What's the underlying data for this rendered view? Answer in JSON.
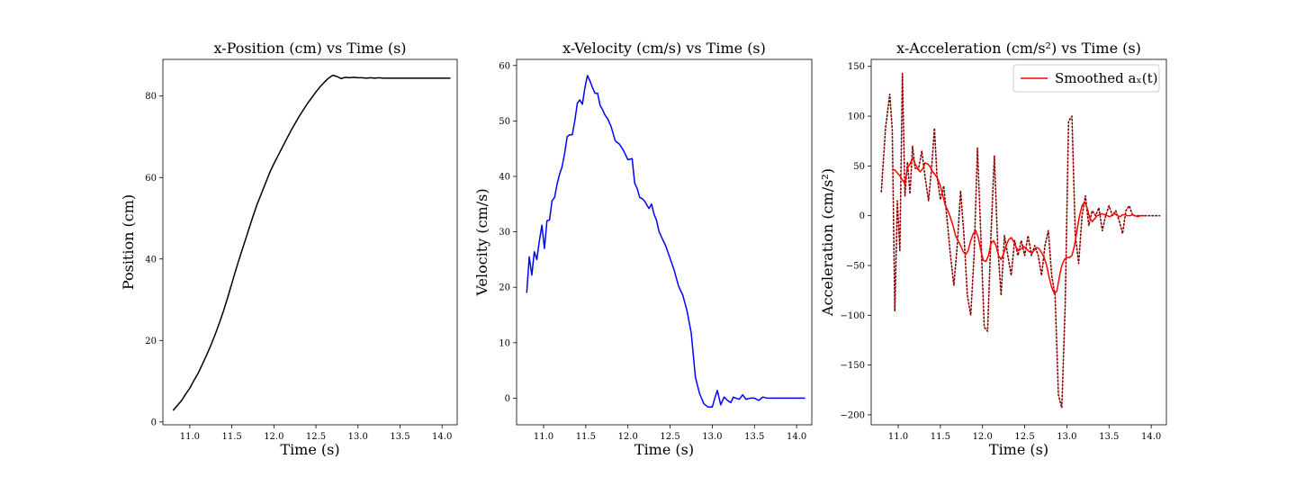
{
  "chart_data": [
    {
      "type": "line",
      "title": "x-Position (cm) vs Time (s)",
      "xlabel": "Time (s)",
      "ylabel": "Position (cm)",
      "xlim": [
        10.68,
        14.18
      ],
      "ylim": [
        -0.7,
        89.0
      ],
      "xticks": [
        11.0,
        11.5,
        12.0,
        12.5,
        13.0,
        13.5,
        14.0
      ],
      "xtick_labels": [
        "11.0",
        "11.5",
        "12.0",
        "12.5",
        "13.0",
        "13.5",
        "14.0"
      ],
      "yticks": [
        0,
        20,
        40,
        60,
        80
      ],
      "ytick_labels": [
        "0",
        "20",
        "40",
        "60",
        "80"
      ],
      "grid": false,
      "series": [
        {
          "color": "#000000",
          "style": "solid",
          "x": [
            10.8,
            10.85,
            10.9,
            10.95,
            11.0,
            11.05,
            11.1,
            11.15,
            11.2,
            11.25,
            11.3,
            11.35,
            11.4,
            11.45,
            11.5,
            11.55,
            11.6,
            11.65,
            11.7,
            11.75,
            11.8,
            11.85,
            11.9,
            11.95,
            12.0,
            12.05,
            12.1,
            12.15,
            12.2,
            12.25,
            12.3,
            12.35,
            12.4,
            12.45,
            12.5,
            12.55,
            12.6,
            12.65,
            12.7,
            12.75,
            12.8,
            12.85,
            12.9,
            12.95,
            13.0,
            13.05,
            13.1,
            13.15,
            13.2,
            13.25,
            13.3,
            13.35,
            13.4,
            13.45,
            13.5,
            13.55,
            13.6,
            13.65,
            13.7,
            13.75,
            13.8,
            13.85,
            13.9,
            13.95,
            14.0,
            14.05,
            14.1
          ],
          "y": [
            2.8,
            4.0,
            5.2,
            6.8,
            8.3,
            10.2,
            12.0,
            14.2,
            16.4,
            18.8,
            21.4,
            24.2,
            27.2,
            30.5,
            34.0,
            37.5,
            40.8,
            44.0,
            47.2,
            50.4,
            53.4,
            56.0,
            58.6,
            61.2,
            63.4,
            65.4,
            67.4,
            69.4,
            71.4,
            73.2,
            75.0,
            76.6,
            78.2,
            79.6,
            81.0,
            82.3,
            83.4,
            84.4,
            85.1,
            84.8,
            84.3,
            84.6,
            84.5,
            84.6,
            84.5,
            84.5,
            84.4,
            84.5,
            84.4,
            84.5,
            84.4,
            84.4,
            84.4,
            84.4,
            84.4,
            84.4,
            84.4,
            84.4,
            84.4,
            84.4,
            84.4,
            84.4,
            84.4,
            84.4,
            84.4,
            84.4,
            84.4
          ]
        }
      ]
    },
    {
      "type": "line",
      "title": "x-Velocity (cm/s) vs Time (s)",
      "xlabel": "Time (s)",
      "ylabel": "Velocity (cm/s)",
      "xlim": [
        10.68,
        14.18
      ],
      "ylim": [
        -4.8,
        61.1
      ],
      "xticks": [
        11.0,
        11.5,
        12.0,
        12.5,
        13.0,
        13.5,
        14.0
      ],
      "xtick_labels": [
        "11.0",
        "11.5",
        "12.0",
        "12.5",
        "13.0",
        "13.5",
        "14.0"
      ],
      "yticks": [
        0,
        10,
        20,
        30,
        40,
        50,
        60
      ],
      "ytick_labels": [
        "0",
        "10",
        "20",
        "30",
        "40",
        "50",
        "60"
      ],
      "grid": false,
      "series": [
        {
          "color": "#0000ff",
          "style": "solid",
          "x": [
            10.8,
            10.83,
            10.86,
            10.89,
            10.92,
            10.95,
            10.98,
            11.01,
            11.04,
            11.07,
            11.1,
            11.13,
            11.16,
            11.19,
            11.22,
            11.25,
            11.28,
            11.31,
            11.34,
            11.37,
            11.4,
            11.43,
            11.46,
            11.49,
            11.52,
            11.55,
            11.58,
            11.61,
            11.64,
            11.67,
            11.7,
            11.73,
            11.76,
            11.8,
            11.85,
            11.9,
            11.95,
            12.0,
            12.05,
            12.08,
            12.11,
            12.14,
            12.17,
            12.2,
            12.25,
            12.28,
            12.31,
            12.34,
            12.37,
            12.4,
            12.45,
            12.5,
            12.55,
            12.6,
            12.65,
            12.7,
            12.75,
            12.8,
            12.85,
            12.9,
            12.95,
            13.0,
            13.03,
            13.06,
            13.1,
            13.14,
            13.18,
            13.22,
            13.25,
            13.28,
            13.32,
            13.36,
            13.4,
            13.45,
            13.5,
            13.55,
            13.6,
            13.65,
            13.7,
            13.75,
            13.8,
            13.85,
            13.9,
            13.95,
            14.0,
            14.05,
            14.1
          ],
          "y": [
            19.0,
            25.5,
            22.2,
            26.4,
            25.0,
            28.4,
            31.2,
            27.0,
            32.0,
            32.1,
            35.6,
            36.2,
            38.6,
            40.4,
            41.8,
            44.2,
            47.2,
            47.5,
            47.5,
            50.0,
            53.2,
            53.8,
            53.0,
            56.0,
            58.2,
            57.2,
            56.0,
            55.0,
            55.0,
            52.8,
            52.0,
            51.0,
            50.4,
            49.0,
            46.4,
            45.8,
            44.6,
            43.0,
            43.2,
            38.8,
            37.8,
            36.2,
            36.0,
            35.5,
            34.2,
            35.0,
            33.2,
            32.0,
            30.0,
            29.0,
            27.4,
            25.2,
            23.0,
            20.2,
            18.6,
            15.8,
            11.8,
            3.8,
            0.8,
            -1.0,
            -1.6,
            -1.6,
            0.0,
            1.4,
            -1.2,
            0.2,
            -0.4,
            -0.8,
            0.2,
            0.0,
            -0.2,
            0.6,
            -0.2,
            0.0,
            0.0,
            -0.4,
            0.2,
            0.0,
            0.0,
            0.0,
            0.0,
            0.0,
            0.0,
            0.0,
            0.0,
            0.0,
            0.0
          ]
        }
      ]
    },
    {
      "type": "line",
      "title": "x-Acceleration (cm/s²) vs Time (s)",
      "xlabel": "Time (s)",
      "ylabel": "Acceleration (cm/s²)",
      "xlim": [
        10.68,
        14.18
      ],
      "ylim": [
        -210.0,
        157.0
      ],
      "xticks": [
        11.0,
        11.5,
        12.0,
        12.5,
        13.0,
        13.5,
        14.0
      ],
      "xtick_labels": [
        "11.0",
        "11.5",
        "12.0",
        "12.5",
        "13.0",
        "13.5",
        "14.0"
      ],
      "yticks": [
        -200,
        -150,
        -100,
        -50,
        0,
        50,
        100,
        150
      ],
      "ytick_labels": [
        "−200",
        "−150",
        "−100",
        "−50",
        "0",
        "50",
        "100",
        "150"
      ],
      "grid": false,
      "legend": {
        "position": "top-right",
        "entries": [
          "Smoothed aₓ(t)"
        ]
      },
      "series": [
        {
          "color": "#8b0000",
          "style": "dotted",
          "x": [
            10.8,
            10.85,
            10.9,
            10.93,
            10.96,
            10.99,
            11.02,
            11.05,
            11.08,
            11.11,
            11.14,
            11.17,
            11.2,
            11.24,
            11.28,
            11.32,
            11.36,
            11.4,
            11.43,
            11.46,
            11.5,
            11.54,
            11.58,
            11.62,
            11.66,
            11.7,
            11.74,
            11.78,
            11.82,
            11.86,
            11.9,
            11.94,
            11.98,
            12.02,
            12.06,
            12.1,
            12.14,
            12.18,
            12.22,
            12.26,
            12.3,
            12.34,
            12.38,
            12.42,
            12.46,
            12.5,
            12.54,
            12.58,
            12.62,
            12.66,
            12.7,
            12.74,
            12.78,
            12.82,
            12.86,
            12.9,
            12.94,
            12.98,
            13.02,
            13.06,
            13.1,
            13.14,
            13.18,
            13.22,
            13.26,
            13.3,
            13.34,
            13.38,
            13.42,
            13.46,
            13.5,
            13.54,
            13.58,
            13.62,
            13.66,
            13.7,
            13.74,
            13.78,
            13.82,
            13.86,
            13.9,
            13.95,
            14.0,
            14.05,
            14.1
          ],
          "y": [
            24,
            88,
            122,
            86,
            -96,
            15,
            -35,
            143,
            20,
            54,
            22,
            70,
            48,
            46,
            65,
            38,
            15,
            52,
            88,
            40,
            16,
            30,
            -4,
            -40,
            -70,
            -30,
            25,
            -20,
            -80,
            -100,
            -40,
            68,
            -20,
            -112,
            -116,
            -20,
            60,
            -30,
            -80,
            -20,
            -40,
            -60,
            -25,
            -40,
            -25,
            -40,
            -20,
            -40,
            -30,
            -40,
            -60,
            -30,
            -15,
            -60,
            -80,
            -180,
            -193,
            -90,
            95,
            100,
            -20,
            -48,
            0,
            20,
            -10,
            5,
            0,
            8,
            -15,
            0,
            10,
            0,
            5,
            -5,
            -18,
            5,
            10,
            0,
            0,
            0,
            0,
            0,
            0,
            0,
            0
          ]
        },
        {
          "name": "Smoothed aₓ(t)",
          "color": "#ff0000",
          "style": "solid",
          "x": [
            10.93,
            10.96,
            10.99,
            11.02,
            11.05,
            11.08,
            11.11,
            11.14,
            11.17,
            11.2,
            11.23,
            11.26,
            11.29,
            11.32,
            11.35,
            11.38,
            11.41,
            11.44,
            11.47,
            11.5,
            11.53,
            11.56,
            11.59,
            11.62,
            11.65,
            11.68,
            11.71,
            11.74,
            11.77,
            11.8,
            11.83,
            11.86,
            11.89,
            11.92,
            11.95,
            11.98,
            12.01,
            12.04,
            12.07,
            12.1,
            12.13,
            12.16,
            12.19,
            12.22,
            12.25,
            12.28,
            12.31,
            12.34,
            12.37,
            12.4,
            12.43,
            12.46,
            12.49,
            12.52,
            12.55,
            12.58,
            12.61,
            12.64,
            12.67,
            12.7,
            12.73,
            12.76,
            12.79,
            12.82,
            12.85,
            12.88,
            12.91,
            12.94,
            12.97,
            13.0,
            13.03,
            13.06,
            13.09,
            13.12,
            13.15,
            13.18,
            13.21,
            13.24,
            13.27,
            13.3,
            13.33,
            13.36,
            13.39,
            13.42,
            13.45,
            13.48,
            13.51,
            13.54,
            13.57,
            13.6,
            13.63,
            13.66,
            13.69,
            13.72,
            13.75,
            13.78,
            13.81,
            13.84,
            13.87,
            13.9,
            13.93
          ],
          "y": [
            46,
            46,
            43,
            40,
            36,
            32,
            48,
            52,
            58,
            52,
            48,
            44,
            47,
            53,
            52,
            49,
            44,
            41,
            37,
            30,
            20,
            10,
            5,
            -2,
            -10,
            -20,
            -25,
            -30,
            -36,
            -39,
            -35,
            -25,
            -18,
            -15,
            -22,
            -35,
            -45,
            -46,
            -40,
            -28,
            -25,
            -30,
            -40,
            -44,
            -38,
            -30,
            -24,
            -22,
            -26,
            -32,
            -35,
            -33,
            -31,
            -33,
            -36,
            -37,
            -35,
            -32,
            -33,
            -37,
            -42,
            -50,
            -62,
            -72,
            -78,
            -76,
            -62,
            -50,
            -44,
            -42,
            -42,
            -40,
            -30,
            -15,
            0,
            10,
            14,
            8,
            -2,
            -6,
            -3,
            0,
            1,
            2,
            1,
            0,
            -1,
            1,
            2,
            0,
            -1,
            1,
            1,
            0,
            0,
            1,
            0,
            -1,
            0,
            0,
            0
          ]
        }
      ]
    }
  ]
}
